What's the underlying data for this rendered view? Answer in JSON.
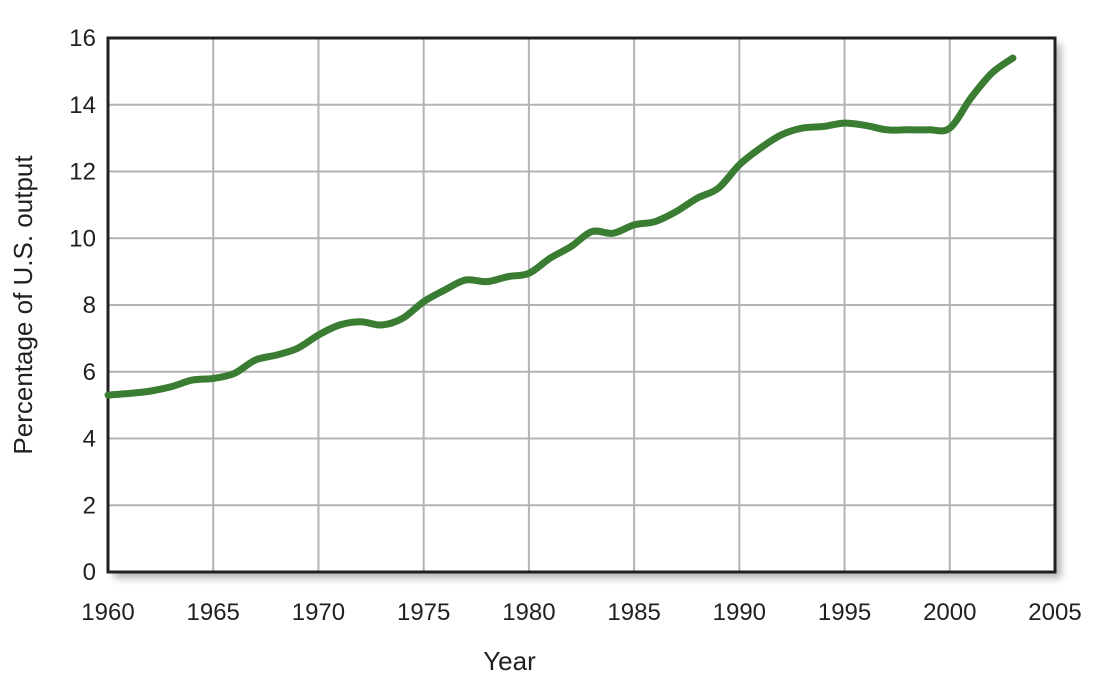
{
  "chart_data": {
    "type": "line",
    "title": "",
    "xlabel": "Year",
    "ylabel": "Percentage of U.S. output",
    "xlim": [
      1960,
      2005
    ],
    "ylim": [
      0,
      16
    ],
    "x_ticks": [
      1960,
      1965,
      1970,
      1975,
      1980,
      1985,
      1990,
      1995,
      2000,
      2005
    ],
    "y_ticks": [
      0,
      2,
      4,
      6,
      8,
      10,
      12,
      14,
      16
    ],
    "grid": true,
    "legend": "none",
    "series": [
      {
        "color": "#3a7d32",
        "x": [
          1960,
          1961,
          1962,
          1963,
          1964,
          1965,
          1966,
          1967,
          1968,
          1969,
          1970,
          1971,
          1972,
          1973,
          1974,
          1975,
          1976,
          1977,
          1978,
          1979,
          1980,
          1981,
          1982,
          1983,
          1984,
          1985,
          1986,
          1987,
          1988,
          1989,
          1990,
          1991,
          1992,
          1993,
          1994,
          1995,
          1996,
          1997,
          1998,
          1999,
          2000,
          2001,
          2002,
          2003
        ],
        "values": [
          5.3,
          5.35,
          5.42,
          5.55,
          5.75,
          5.8,
          5.95,
          6.35,
          6.5,
          6.7,
          7.1,
          7.4,
          7.5,
          7.4,
          7.6,
          8.1,
          8.45,
          8.75,
          8.7,
          8.85,
          8.95,
          9.4,
          9.75,
          10.2,
          10.15,
          10.4,
          10.5,
          10.8,
          11.2,
          11.5,
          12.2,
          12.7,
          13.1,
          13.3,
          13.35,
          13.45,
          13.38,
          13.25,
          13.25,
          13.25,
          13.3,
          14.2,
          14.95,
          15.4
        ]
      }
    ]
  }
}
